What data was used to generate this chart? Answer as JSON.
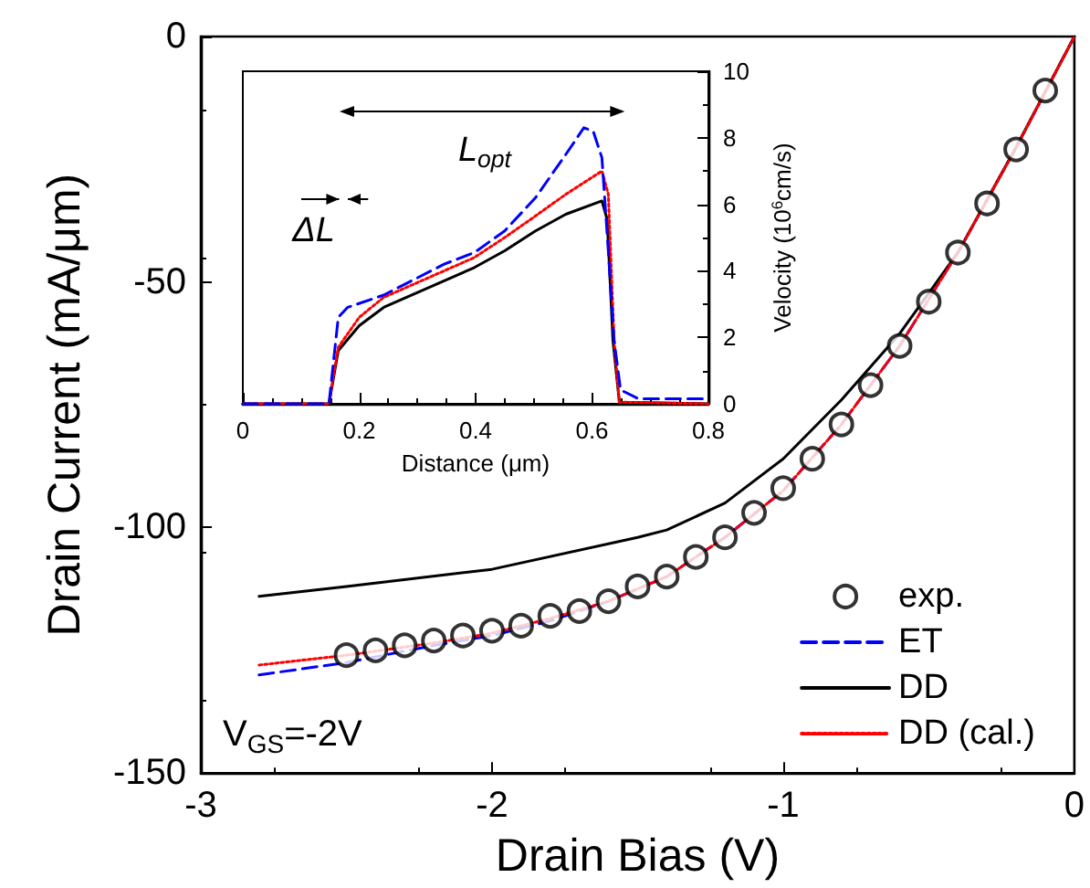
{
  "chart_data": [
    {
      "type": "line",
      "xlabel": "Drain Bias (V)",
      "ylabel": "Drain Current (mA/μm)",
      "xlim": [
        -3,
        0
      ],
      "xticks": [
        -3,
        -2,
        -1,
        0
      ],
      "ylim": [
        -150,
        0
      ],
      "yticks": [
        -150,
        -100,
        -50,
        0
      ],
      "grid": false,
      "legend": "bottom right",
      "annotations": [
        "V$_{GS}$=-2V"
      ],
      "series": [
        {
          "name": "exp.",
          "type": "scatter",
          "marker": "circle",
          "color": "#000000",
          "x": [
            -2.5,
            -2.4,
            -2.3,
            -2.2,
            -2.1,
            -2.0,
            -1.9,
            -1.8,
            -1.7,
            -1.6,
            -1.5,
            -1.4,
            -1.3,
            -1.2,
            -1.1,
            -1.0,
            -0.9,
            -0.8,
            -0.7,
            -0.6,
            -0.5,
            -0.4,
            -0.3,
            -0.2,
            -0.1
          ],
          "values": [
            -126,
            -125,
            -124,
            -123,
            -122,
            -121,
            -120,
            -118,
            -117,
            -115,
            -112,
            -110,
            -106,
            -102,
            -97,
            -92,
            -86,
            -79,
            -71,
            -63,
            -54,
            -44,
            -34,
            -23,
            -11
          ]
        },
        {
          "name": "ET",
          "type": "line",
          "marker": "none",
          "line_style": "dashed",
          "color": "#0000ff",
          "x": [
            -2.8,
            -2.5,
            -2.2,
            -2.0,
            -1.8,
            -1.6,
            -1.5,
            -1.4,
            -1.2,
            -1.0,
            -0.8,
            -0.6,
            -0.4,
            -0.2,
            0
          ],
          "values": [
            -130,
            -127.5,
            -124,
            -122,
            -119,
            -115,
            -112.5,
            -110,
            -102,
            -92.5,
            -79,
            -63,
            -44,
            -22.6,
            0
          ]
        },
        {
          "name": "DD",
          "type": "line",
          "marker": "none",
          "line_style": "solid",
          "color": "#000000",
          "x": [
            -2.8,
            -2.5,
            -2.0,
            -1.5,
            -1.4,
            -1.2,
            -1.0,
            -0.8,
            -0.6,
            -0.4,
            -0.2,
            0
          ],
          "values": [
            -114,
            -112,
            -108.5,
            -102,
            -100.5,
            -95,
            -86,
            -74,
            -60.5,
            -44,
            -22.5,
            0
          ]
        },
        {
          "name": "DD (cal.)",
          "type": "line",
          "marker": "none",
          "line_style": "dotted",
          "color": "#ff0000",
          "x": [
            -2.8,
            -2.5,
            -2.2,
            -2.0,
            -1.8,
            -1.6,
            -1.5,
            -1.4,
            -1.2,
            -1.0,
            -0.8,
            -0.6,
            -0.4,
            -0.2,
            0
          ],
          "values": [
            -128,
            -126,
            -123.5,
            -121.5,
            -118.5,
            -115,
            -112.5,
            -110,
            -102,
            -92.5,
            -79,
            -63,
            -44,
            -22.6,
            0
          ]
        }
      ]
    },
    {
      "type": "line",
      "xlabel": "Distance (μm)",
      "y2label": "Velocity (10$^{6}$cm/s)",
      "xlim": [
        0,
        0.8
      ],
      "xticks": [
        0,
        0.2,
        0.4,
        0.6,
        0.8
      ],
      "y2lim": [
        0,
        10
      ],
      "y2ticks": [
        0,
        2,
        4,
        6,
        8,
        10
      ],
      "grid": false,
      "legend": false,
      "annotations": [
        "L$_{opt}$",
        "ΔL"
      ],
      "series": [
        {
          "type": "line",
          "axis": "y2",
          "line_style": "solid",
          "color": "#000000",
          "x": [
            0,
            0.148,
            0.164,
            0.2,
            0.242,
            0.346,
            0.398,
            0.45,
            0.503,
            0.555,
            0.617,
            0.626,
            0.636,
            0.647,
            0.8
          ],
          "values": [
            0,
            0,
            1.6,
            2.35,
            2.9,
            3.7,
            4.1,
            4.6,
            5.2,
            5.7,
            6.1,
            5.55,
            1.9,
            0.05,
            0
          ]
        },
        {
          "type": "line",
          "axis": "y2",
          "line_style": "dotted",
          "color": "#ff0000",
          "x": [
            0,
            0.148,
            0.164,
            0.2,
            0.242,
            0.346,
            0.398,
            0.45,
            0.503,
            0.555,
            0.617,
            0.628,
            0.638,
            0.647,
            0.8
          ],
          "values": [
            0,
            0,
            1.7,
            2.6,
            3.2,
            4.0,
            4.4,
            5.0,
            5.65,
            6.3,
            7.0,
            6.3,
            1.9,
            0.05,
            0
          ]
        },
        {
          "type": "line",
          "axis": "y2",
          "line_style": "dashed",
          "color": "#0000ff",
          "x": [
            0,
            0.148,
            0.164,
            0.18,
            0.242,
            0.346,
            0.398,
            0.45,
            0.503,
            0.555,
            0.586,
            0.602,
            0.617,
            0.628,
            0.638,
            0.649,
            0.68,
            0.8
          ],
          "values": [
            0,
            0,
            2.6,
            2.9,
            3.27,
            4.2,
            4.55,
            5.2,
            6.2,
            7.5,
            8.3,
            8.2,
            7.4,
            4.6,
            1.9,
            0.42,
            0.15,
            0.15
          ]
        }
      ]
    }
  ]
}
